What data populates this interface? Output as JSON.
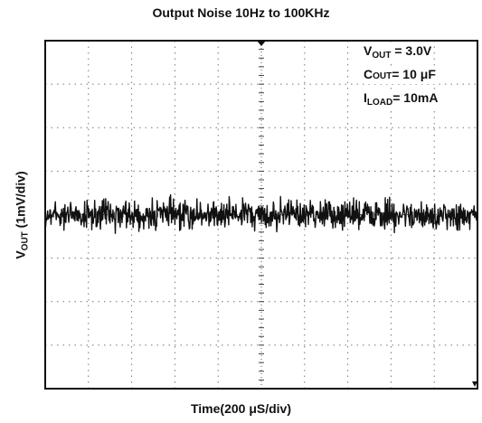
{
  "chart_data": {
    "type": "line",
    "title": "Output Noise 10Hz to 100KHz",
    "xlabel": "Time(200 μS/div)",
    "ylabel_main": "V",
    "ylabel_sub": "OUT",
    "ylabel_rest": " (1mV/div)",
    "x_divisions": 10,
    "y_divisions": 8,
    "x_range_ms": [
      0,
      2
    ],
    "y_range_mV": [
      -4,
      4
    ],
    "series": [
      {
        "trace_level_mV": 0.0,
        "noise_peak_to_peak_mV": 0.6
      }
    ],
    "annotations": {
      "vout": {
        "main": "V",
        "sub": "OUT",
        "value": " = 3.0V"
      },
      "cout": {
        "main": "C",
        "sub": "OUT",
        "value": "= 10 μF"
      },
      "iload": {
        "main": "I",
        "sub": "LOAD",
        "value": "= 10mA"
      }
    },
    "grid": true
  }
}
